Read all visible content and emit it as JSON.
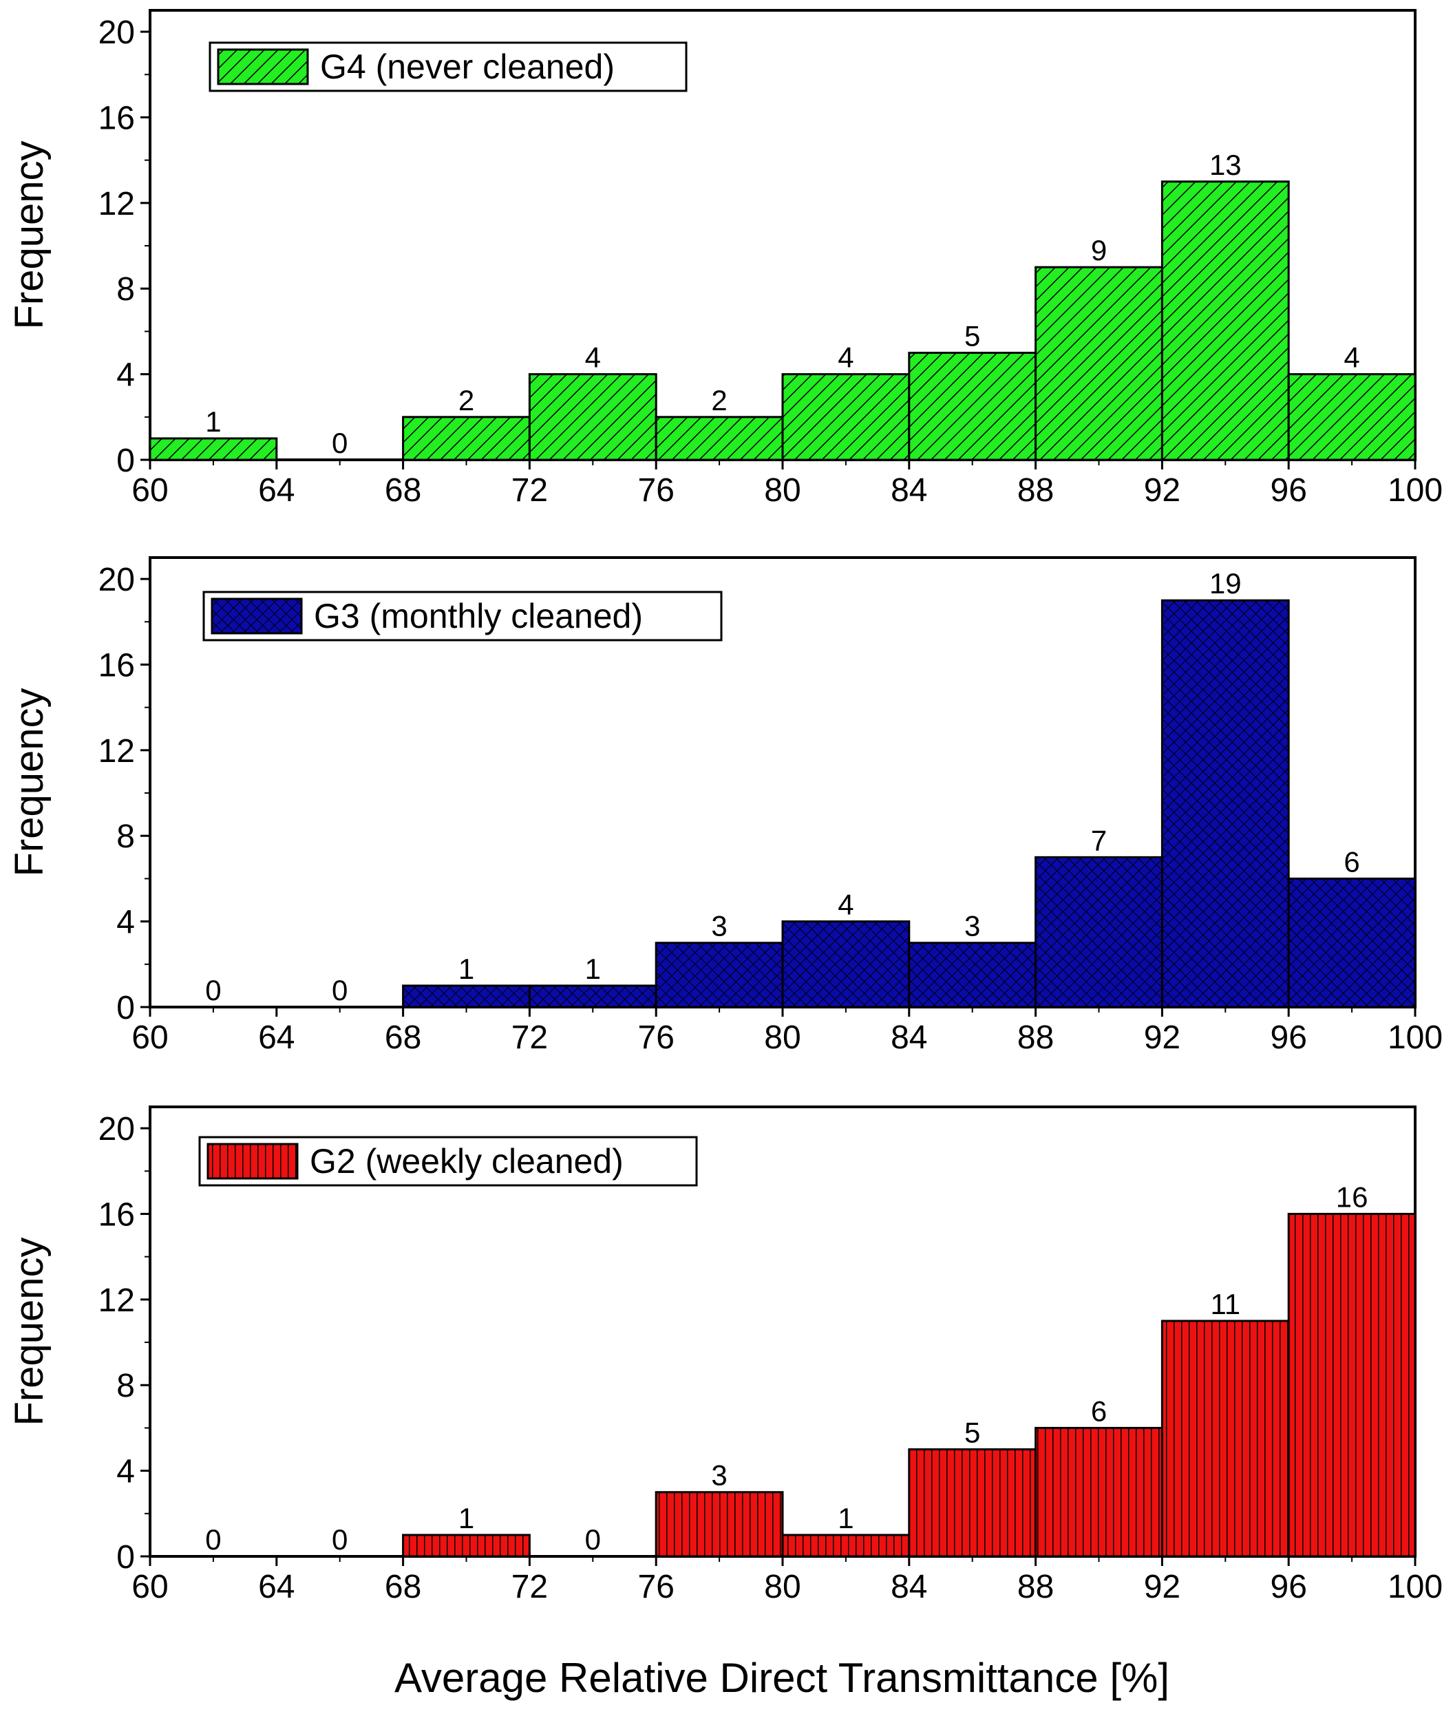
{
  "figure": {
    "xlabel": "Average Relative Direct Transmittance [%]",
    "bin_edges": [
      60,
      64,
      68,
      72,
      76,
      80,
      84,
      88,
      92,
      96,
      100
    ]
  },
  "chart_data": [
    {
      "type": "bar",
      "series_name": "G4 (never cleaned)",
      "pattern": "diagonal-hatch",
      "color": "#22ee22",
      "categories": [
        "60-64",
        "64-68",
        "68-72",
        "72-76",
        "76-80",
        "80-84",
        "84-88",
        "88-92",
        "92-96",
        "96-100"
      ],
      "bin_edges": [
        60,
        64,
        68,
        72,
        76,
        80,
        84,
        88,
        92,
        96,
        100
      ],
      "values": [
        1,
        0,
        2,
        4,
        2,
        4,
        5,
        9,
        13,
        4
      ],
      "value_labels": [
        "1",
        "0",
        "2",
        "4",
        "2",
        "4",
        "5",
        "9",
        "13",
        "4"
      ],
      "ylabel": "Frequency",
      "ylim": [
        0,
        21
      ],
      "yticks": [
        "0",
        "4",
        "8",
        "12",
        "16",
        "20"
      ],
      "xticks": [
        "60",
        "64",
        "68",
        "72",
        "76",
        "80",
        "84",
        "88",
        "92",
        "96",
        "100"
      ],
      "legend_position": "top-left"
    },
    {
      "type": "bar",
      "series_name": "G3 (monthly cleaned)",
      "pattern": "crosshatch",
      "color": "#0a0aa8",
      "categories": [
        "60-64",
        "64-68",
        "68-72",
        "72-76",
        "76-80",
        "80-84",
        "84-88",
        "88-92",
        "92-96",
        "96-100"
      ],
      "bin_edges": [
        60,
        64,
        68,
        72,
        76,
        80,
        84,
        88,
        92,
        96,
        100
      ],
      "values": [
        0,
        0,
        1,
        1,
        3,
        4,
        3,
        7,
        19,
        6
      ],
      "value_labels": [
        "0",
        "0",
        "1",
        "1",
        "3",
        "4",
        "3",
        "7",
        "19",
        "6"
      ],
      "ylabel": "Frequency",
      "ylim": [
        0,
        21
      ],
      "yticks": [
        "0",
        "4",
        "8",
        "12",
        "16",
        "20"
      ],
      "xticks": [
        "60",
        "64",
        "68",
        "72",
        "76",
        "80",
        "84",
        "88",
        "92",
        "96",
        "100"
      ],
      "legend_position": "top-left"
    },
    {
      "type": "bar",
      "series_name": "G2 (weekly cleaned)",
      "pattern": "vertical-lines",
      "color": "#ee1111",
      "categories": [
        "60-64",
        "64-68",
        "68-72",
        "72-76",
        "76-80",
        "80-84",
        "84-88",
        "88-92",
        "92-96",
        "96-100"
      ],
      "bin_edges": [
        60,
        64,
        68,
        72,
        76,
        80,
        84,
        88,
        92,
        96,
        100
      ],
      "values": [
        0,
        0,
        1,
        0,
        3,
        1,
        5,
        6,
        11,
        16
      ],
      "value_labels": [
        "0",
        "0",
        "1",
        "0",
        "3",
        "1",
        "5",
        "6",
        "11",
        "16"
      ],
      "ylabel": "Frequency",
      "ylim": [
        0,
        21
      ],
      "yticks": [
        "0",
        "4",
        "8",
        "12",
        "16",
        "20"
      ],
      "xticks": [
        "60",
        "64",
        "68",
        "72",
        "76",
        "80",
        "84",
        "88",
        "92",
        "96",
        "100"
      ],
      "legend_position": "top-left"
    }
  ]
}
